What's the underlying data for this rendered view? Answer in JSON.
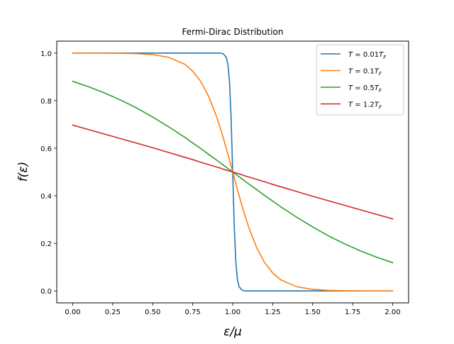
{
  "chart_data": {
    "type": "line",
    "title": "Fermi-Dirac Distribution",
    "xlabel": "ε/μ",
    "ylabel": "f(ε)",
    "xlim": [
      -0.1,
      2.1
    ],
    "ylim": [
      -0.05,
      1.05
    ],
    "x_ticks": [
      0.0,
      0.25,
      0.5,
      0.75,
      1.0,
      1.25,
      1.5,
      1.75,
      2.0
    ],
    "x_tick_labels": [
      "0.00",
      "0.25",
      "0.50",
      "0.75",
      "1.00",
      "1.25",
      "1.50",
      "1.75",
      "2.00"
    ],
    "y_ticks": [
      0.0,
      0.2,
      0.4,
      0.6,
      0.8,
      1.0
    ],
    "y_tick_labels": [
      "0.0",
      "0.2",
      "0.4",
      "0.6",
      "0.8",
      "1.0"
    ],
    "grid": false,
    "legend_position": "top-right",
    "x": [
      0.0,
      0.1,
      0.2,
      0.3,
      0.4,
      0.5,
      0.6,
      0.7,
      0.75,
      0.8,
      0.85,
      0.9,
      0.92,
      0.94,
      0.96,
      0.97,
      0.98,
      0.99,
      1.0,
      1.01,
      1.02,
      1.03,
      1.04,
      1.06,
      1.08,
      1.1,
      1.15,
      1.2,
      1.25,
      1.3,
      1.4,
      1.5,
      1.6,
      1.7,
      1.8,
      1.9,
      2.0
    ],
    "series": [
      {
        "name": "T = 0.01T_F",
        "color": "#1f77b4",
        "values": [
          1.0,
          1.0,
          1.0,
          1.0,
          1.0,
          1.0,
          1.0,
          1.0,
          1.0,
          1.0,
          1.0,
          1.0,
          0.9997,
          0.9975,
          0.982,
          0.953,
          0.881,
          0.731,
          0.5,
          0.269,
          0.119,
          0.047,
          0.018,
          0.0025,
          0.0003,
          0.0,
          0.0,
          0.0,
          0.0,
          0.0,
          0.0,
          0.0,
          0.0,
          0.0,
          0.0,
          0.0,
          0.0
        ]
      },
      {
        "name": "T = 0.1T_F",
        "color": "#ff7f0e",
        "values": [
          1.0,
          0.9997,
          0.9997,
          0.9991,
          0.9975,
          0.9933,
          0.982,
          0.953,
          0.924,
          0.881,
          0.818,
          0.731,
          0.69,
          0.646,
          0.599,
          0.575,
          0.55,
          0.525,
          0.5,
          0.475,
          0.45,
          0.425,
          0.401,
          0.354,
          0.31,
          0.269,
          0.182,
          0.119,
          0.076,
          0.047,
          0.018,
          0.0067,
          0.0025,
          0.0009,
          0.0003,
          0.0001,
          0.0
        ]
      },
      {
        "name": "T = 0.5T_F",
        "color": "#2ca02c",
        "values": [
          0.881,
          0.858,
          0.832,
          0.802,
          0.769,
          0.731,
          0.69,
          0.646,
          0.622,
          0.599,
          0.574,
          0.55,
          0.54,
          0.53,
          0.52,
          0.515,
          0.51,
          0.505,
          0.5,
          0.495,
          0.49,
          0.485,
          0.48,
          0.47,
          0.46,
          0.45,
          0.426,
          0.401,
          0.378,
          0.354,
          0.31,
          0.269,
          0.231,
          0.198,
          0.168,
          0.142,
          0.119
        ]
      },
      {
        "name": "T = 1.2T_F",
        "color": "#d62728",
        "values": [
          0.697,
          0.678,
          0.659,
          0.64,
          0.621,
          0.602,
          0.582,
          0.562,
          0.552,
          0.541,
          0.531,
          0.521,
          0.517,
          0.512,
          0.508,
          0.506,
          0.504,
          0.502,
          0.5,
          0.498,
          0.496,
          0.494,
          0.492,
          0.488,
          0.483,
          0.479,
          0.469,
          0.459,
          0.448,
          0.438,
          0.418,
          0.398,
          0.379,
          0.36,
          0.341,
          0.322,
          0.303
        ]
      }
    ],
    "legend": [
      {
        "prefix": "T",
        "eq": " = ",
        "coef": "0.01",
        "var": "T",
        "sub": "F"
      },
      {
        "prefix": "T",
        "eq": " = ",
        "coef": "0.1",
        "var": "T",
        "sub": "F"
      },
      {
        "prefix": "T",
        "eq": " = ",
        "coef": "0.5",
        "var": "T",
        "sub": "F"
      },
      {
        "prefix": "T",
        "eq": " = ",
        "coef": "1.2",
        "var": "T",
        "sub": "F"
      }
    ]
  }
}
